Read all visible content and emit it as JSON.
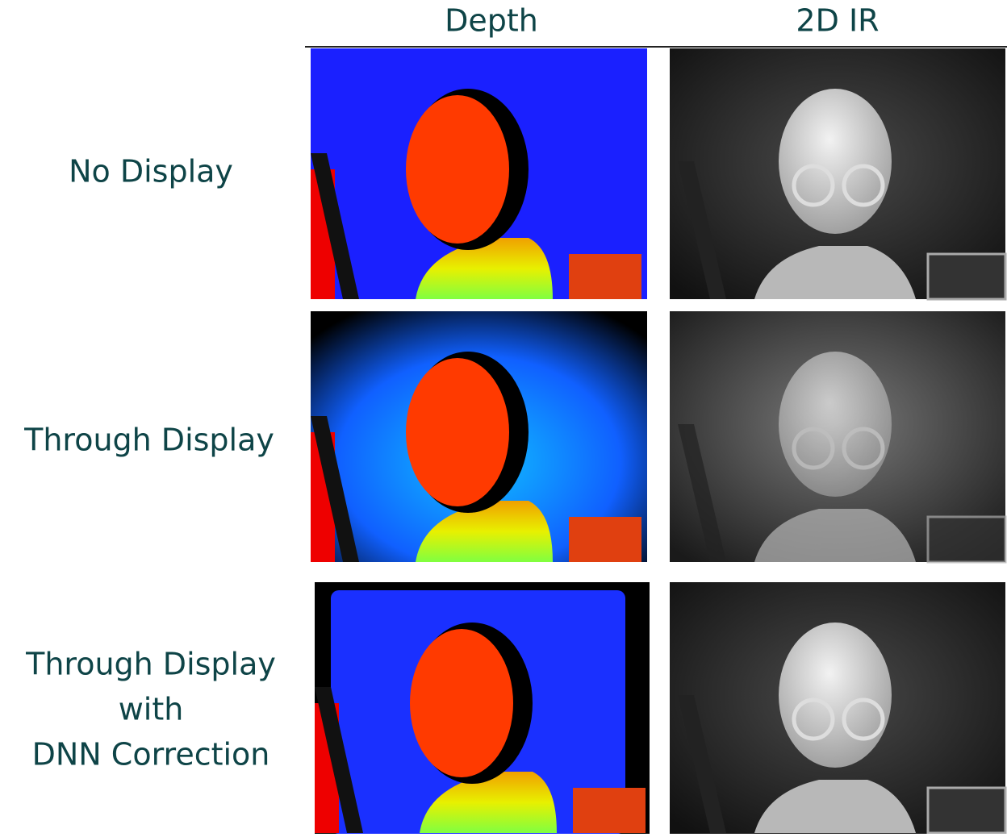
{
  "columns": [
    "Depth",
    "2D IR"
  ],
  "rows": [
    [
      "No Display"
    ],
    [
      "Through Display"
    ],
    [
      "Through Display",
      "with",
      "DNN Correction"
    ]
  ]
}
